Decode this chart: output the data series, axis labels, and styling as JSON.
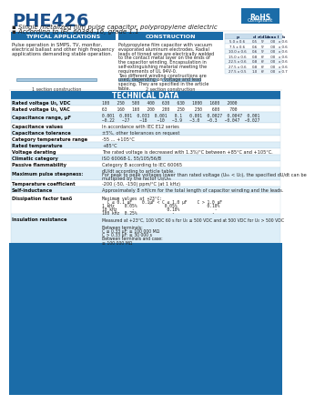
{
  "title": "PHE426",
  "subtitle1": "Single metalized film pulse capacitor, polypropylene dielectric",
  "subtitle2": "According to IEC 60384-16, grade 1.1",
  "section_typical": "TYPICAL APPLICATIONS",
  "section_construction": "CONSTRUCTION",
  "typical_text": [
    "Pulse operation in SMPS, TV, monitor,",
    "electrical ballast and other high frequency",
    "applications demanding stable operation."
  ],
  "construction_text": [
    "Polypropylene film capacitor with vacuum",
    "evaporated aluminum electrodes. Radial",
    "leads of tinned wire are electrically welded",
    "to the contact metal layer on the ends of",
    "the capacitor winding. Encapsulation in",
    "self-extinguishing material meeting the",
    "requirements of UL 94V-0.",
    "Two different winding constructions are",
    "used, depending on voltage and lead",
    "spacing. They are specified in the article",
    "table."
  ],
  "winding1": "1 section construction",
  "winding2": "2 section construction",
  "dim_headers": [
    "p",
    "d",
    "e(d1)",
    "max l",
    "b"
  ],
  "dim_data": [
    [
      "5.0 x 0.6",
      "0.5",
      "5°",
      ".00",
      "x 0.6"
    ],
    [
      "7.5 x 0.6",
      "0.6",
      "5°",
      ".00",
      "x 0.6"
    ],
    [
      "10.0 x 0.6",
      "0.6",
      "5°",
      ".00",
      "x 0.6"
    ],
    [
      "15.0 x 0.6",
      "0.8",
      "6°",
      ".00",
      "x 0.6"
    ],
    [
      "22.5 x 0.6",
      "0.8",
      "6°",
      ".00",
      "x 0.6"
    ],
    [
      "27.5 x 0.6",
      "0.8",
      "6°",
      ".00",
      "x 0.6"
    ],
    [
      "27.5 x 0.5",
      "1.0",
      "6°",
      ".00",
      "x 0.7"
    ]
  ],
  "tech_header": "TECHNICAL DATA",
  "tech_rows_single": [
    [
      "Rated voltage U₀, VDC",
      "100   250   500   400   630   630   1000   1600   2000"
    ],
    [
      "Rated voltage U₀, VAC",
      "63    160   160   200   200   250    250    600    700"
    ],
    [
      "Capacitance values",
      "In accordance with IEC E12 series"
    ],
    [
      "Capacitance tolerance",
      "±5%, other tolerances on request"
    ],
    [
      "Category temperature range",
      "-55 ... +105°C"
    ],
    [
      "Rated temperature",
      "+85°C"
    ],
    [
      "Voltage derating",
      "The rated voltage is decreased with 1.3%/°C between +85°C and +105°C."
    ],
    [
      "Climatic category",
      "ISO 60068-1, 55/105/56/B"
    ],
    [
      "Passive flammability",
      "Category B according to IEC 60065"
    ],
    [
      "Temperature coefficient",
      "-200 (-50, -150) ppm/°C (at 1 kHz)"
    ],
    [
      "Self-inductance",
      "Approximately 8 nH/cm for the total length of capacitor winding and the leads."
    ]
  ],
  "cap_range_label": "Capacitance range, µF",
  "cap_range_values": "0.001  0.001  0.033  0.001   0.1   0.001  0.0027  0.0047  0.001",
  "cap_range_values2": "~0.22   ~27    ~18    ~10   ~3.9   ~3.0   ~0.3   ~0.047  ~0.027",
  "pulse_label": "Maximum pulse steepness:",
  "pulse_line1": "dU/dt according to article table.",
  "pulse_line2": "For peak to peak voltages lower than rated voltage (Uₕₕ < U₀), the specified dU/dt can be",
  "pulse_line3": "multiplied by the factor U₀/Uₕₕ",
  "dissipation_label": "Dissipation factor tanδ",
  "dissipation_lines": [
    "Maximum values at +23°C:",
    "  C ≤ 0.1 µF    0.1µF < C ≤ 1.0 µF    C > 1.0 µF",
    "1 kHz    0.05%           0.05%            0.10%",
    "10 kHz      -             0.10%              -",
    "100 kHz  0.25%              -               -"
  ],
  "insulation_label": "Insulation resistance",
  "insulation_lines": [
    "Measured at +23°C, 100 VDC 60 s for U₀ ≤ 500 VDC and at 500 VDC for U₀ > 500 VDC",
    "",
    "Between terminals:",
    "C ≤ 0.33 µF: ≥ 100 000 MΩ",
    "C > 0.33 µF: ≥ 30 000 s",
    "Between terminals and case:",
    "≥ 100 000 MΩ"
  ],
  "bg_color": "#ffffff",
  "title_color": "#1b4f8a",
  "header_bg": "#1b6ca8",
  "header_text": "#ffffff",
  "rohs_bg": "#1b6ca8",
  "bottom_bar_color": "#1b6ca8",
  "alt_row": "#ddeef8",
  "border_color": "#a0c0d8"
}
